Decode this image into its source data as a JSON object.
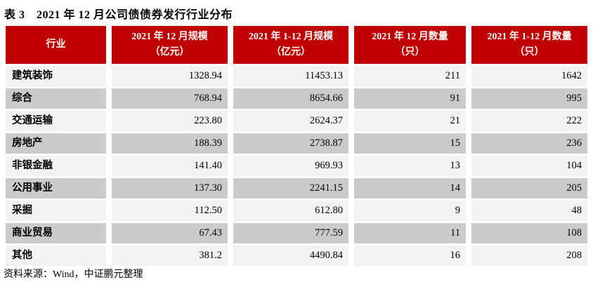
{
  "title": "表 3　2021 年 12 月公司债债券发行行业分布",
  "table": {
    "columns": [
      {
        "line1": "行业",
        "line2": ""
      },
      {
        "line1": "2021 年 12 月规模",
        "line2": "（亿元）"
      },
      {
        "line1": "2021 年 1-12 月规模",
        "line2": "（亿元）"
      },
      {
        "line1": "2021 年 12 月数量",
        "line2": "（只）"
      },
      {
        "line1": "2021 年 1-12 月数量",
        "line2": "（只）"
      }
    ],
    "rows": [
      {
        "industry": "建筑装饰",
        "dec_scale": "1328.94",
        "ytd_scale": "11453.13",
        "dec_count": "211",
        "ytd_count": "1642"
      },
      {
        "industry": "综合",
        "dec_scale": "768.94",
        "ytd_scale": "8654.66",
        "dec_count": "91",
        "ytd_count": "995"
      },
      {
        "industry": "交通运输",
        "dec_scale": "223.80",
        "ytd_scale": "2624.37",
        "dec_count": "21",
        "ytd_count": "222"
      },
      {
        "industry": "房地产",
        "dec_scale": "188.39",
        "ytd_scale": "2738.87",
        "dec_count": "15",
        "ytd_count": "236"
      },
      {
        "industry": "非银金融",
        "dec_scale": "141.40",
        "ytd_scale": "969.93",
        "dec_count": "13",
        "ytd_count": "104"
      },
      {
        "industry": "公用事业",
        "dec_scale": "137.30",
        "ytd_scale": "2241.15",
        "dec_count": "14",
        "ytd_count": "205"
      },
      {
        "industry": "采掘",
        "dec_scale": "112.50",
        "ytd_scale": "612.80",
        "dec_count": "9",
        "ytd_count": "48"
      },
      {
        "industry": "商业贸易",
        "dec_scale": "67.43",
        "ytd_scale": "777.59",
        "dec_count": "11",
        "ytd_count": "108"
      },
      {
        "industry": "其他",
        "dec_scale": "381.2",
        "ytd_scale": "4490.84",
        "dec_count": "16",
        "ytd_count": "208"
      }
    ]
  },
  "footer": {
    "source": "资料来源：Wind，中证鹏元整理"
  },
  "colors": {
    "header_red": "#C00000",
    "row_light": "#F2F2F2",
    "row_dark": "#CBCBCB"
  }
}
